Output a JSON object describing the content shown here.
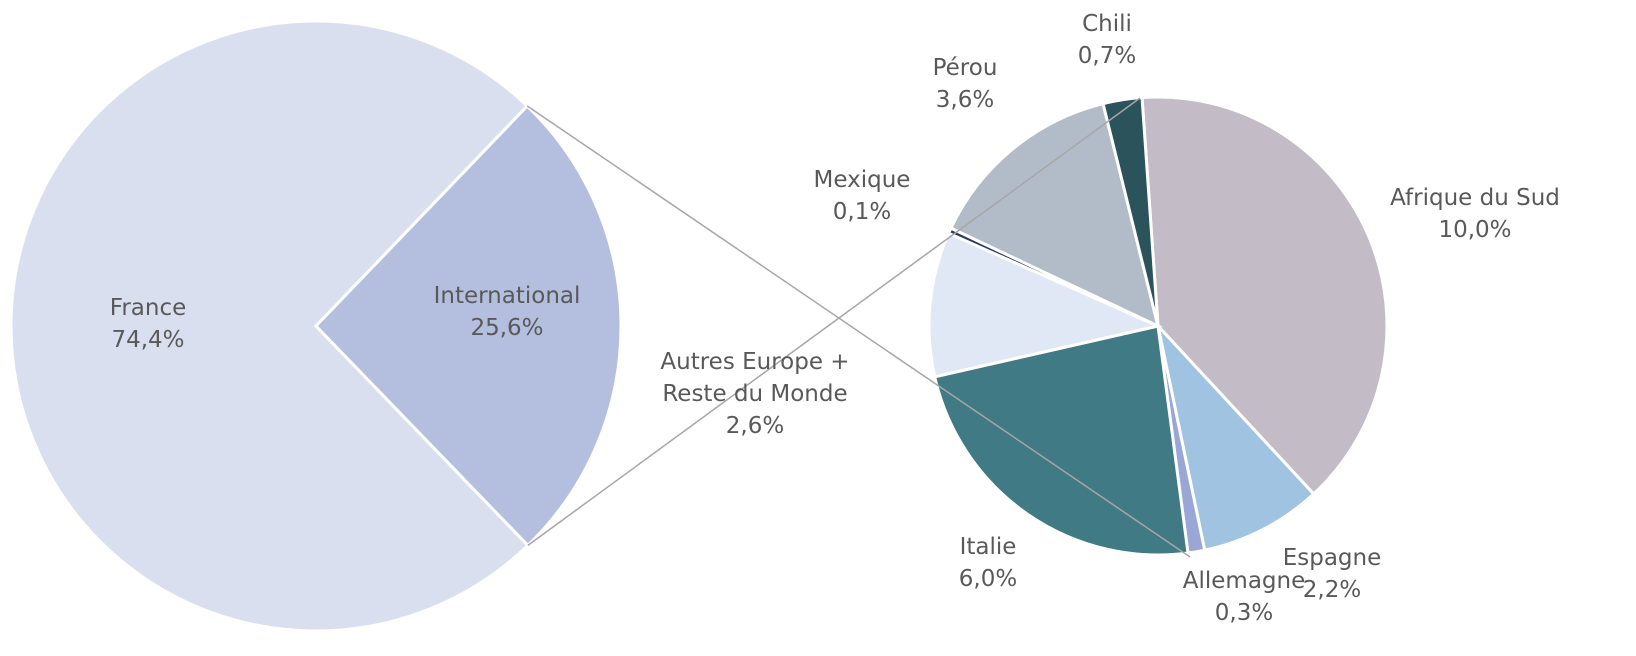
{
  "chart_data": [
    {
      "type": "pie",
      "categories": [
        "France",
        "International"
      ],
      "values": [
        74.4,
        25.6
      ],
      "value_labels": [
        "74,4%",
        "25,6%"
      ],
      "colors": [
        "#dadff0",
        "#b4bfdf"
      ]
    },
    {
      "type": "pie",
      "categories": [
        "Afrique du Sud",
        "Espagne",
        "Allemagne",
        "Italie",
        "Autres Europe + Reste du Monde",
        "Mexique",
        "Pérou",
        "Chili"
      ],
      "values": [
        10.0,
        2.2,
        0.3,
        6.0,
        2.6,
        0.1,
        3.6,
        0.7
      ],
      "value_labels": [
        "10,0%",
        "2,2%",
        "0,3%",
        "6,0%",
        "2,6%",
        "0,1%",
        "3,6%",
        "0,7%"
      ],
      "colors": [
        "#c3bbc6",
        "#a0c3e1",
        "#9aa6d6",
        "#407a84",
        "#dfe8f4",
        "#2b3a66",
        "#b2bcc9",
        "#2a535b"
      ]
    }
  ]
}
